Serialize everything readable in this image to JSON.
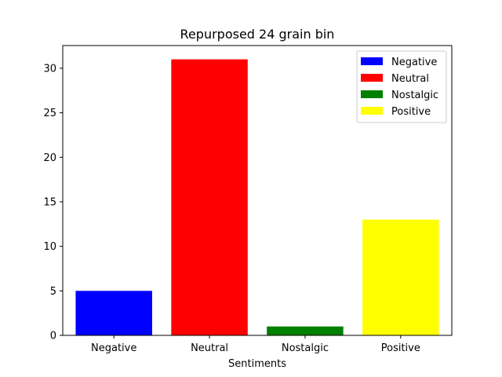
{
  "chart_data": {
    "type": "bar",
    "title": "Repurposed 24 grain bin",
    "xlabel": "Sentiments",
    "ylabel": "",
    "categories": [
      "Negative",
      "Neutral",
      "Nostalgic",
      "Positive"
    ],
    "values": [
      5,
      31,
      1,
      13
    ],
    "colors": [
      "#0000ff",
      "#ff0000",
      "#008000",
      "#ffff00"
    ],
    "ylim": [
      0,
      32.55
    ],
    "yticks": [
      0,
      5,
      10,
      15,
      20,
      25,
      30
    ],
    "grid": false,
    "legend": {
      "placement": "top-right",
      "entries": [
        "Negative",
        "Neutral",
        "Nostalgic",
        "Positive"
      ]
    }
  }
}
